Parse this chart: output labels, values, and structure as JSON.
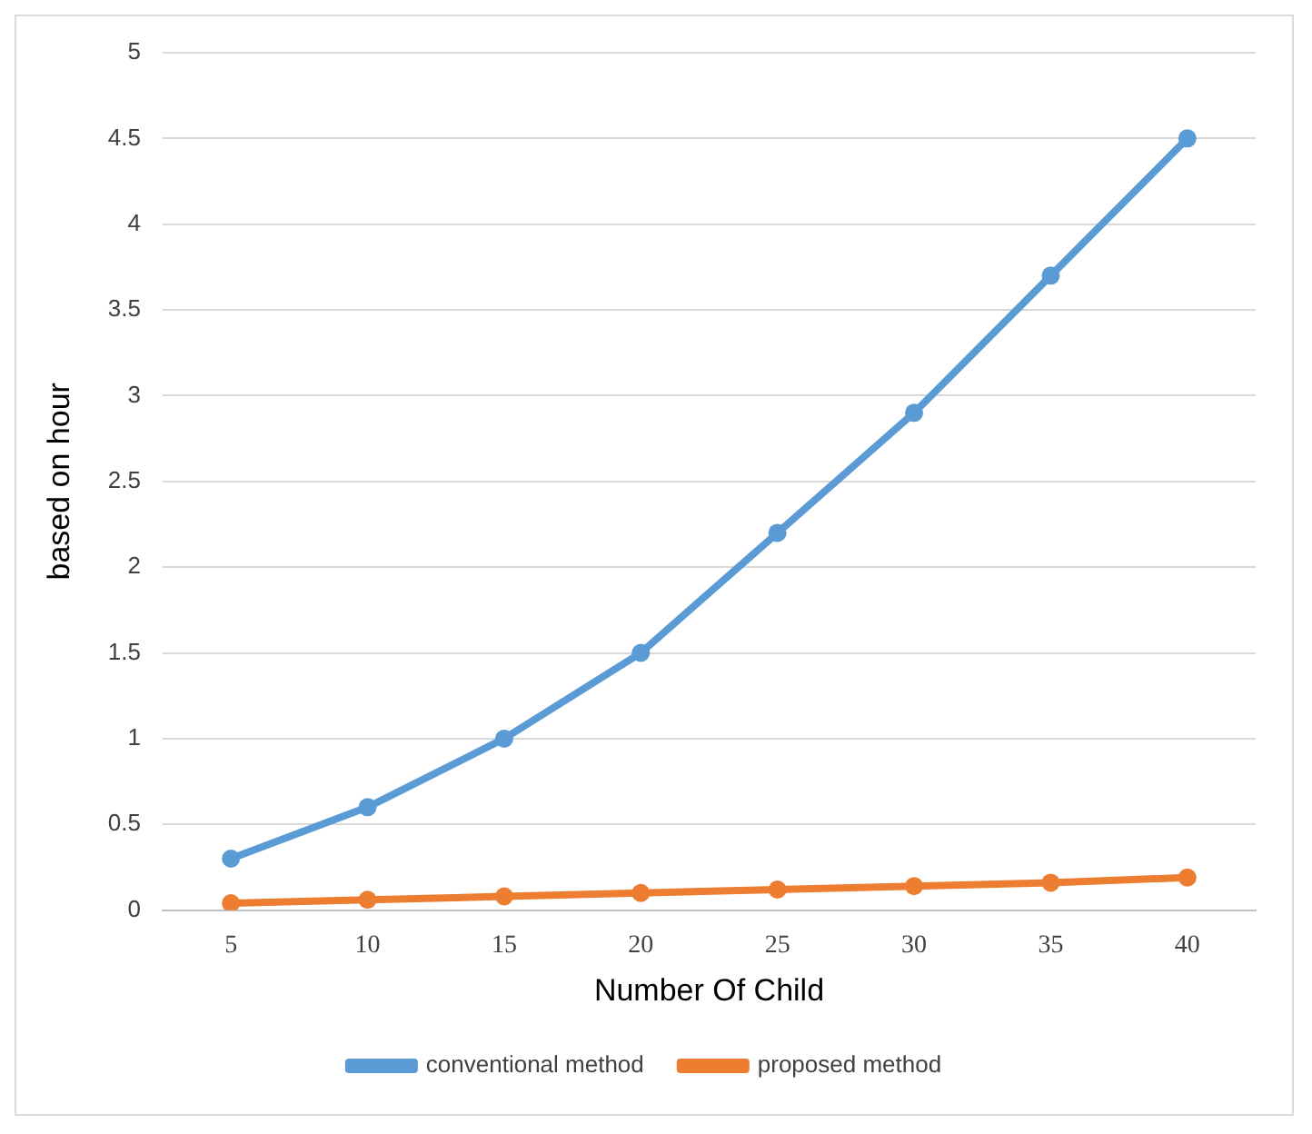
{
  "chart_data": {
    "type": "line",
    "xlabel": "Number Of Child",
    "ylabel": "based on hour",
    "categories": [
      "5",
      "10",
      "15",
      "20",
      "25",
      "30",
      "35",
      "40"
    ],
    "series": [
      {
        "name": "conventional method",
        "color": "#5b9bd5",
        "values": [
          0.3,
          0.6,
          1.0,
          1.5,
          2.2,
          2.9,
          3.7,
          4.5
        ]
      },
      {
        "name": "proposed method",
        "color": "#ed7d31",
        "values": [
          0.04,
          0.06,
          0.08,
          0.1,
          0.12,
          0.14,
          0.16,
          0.19
        ]
      }
    ],
    "ylim": [
      0,
      5
    ],
    "yticks": [
      0,
      0.5,
      1,
      1.5,
      2,
      2.5,
      3,
      3.5,
      4,
      4.5,
      5
    ],
    "grid": "y",
    "legend": "bottom",
    "marker": "circle",
    "line_style": "solid"
  }
}
